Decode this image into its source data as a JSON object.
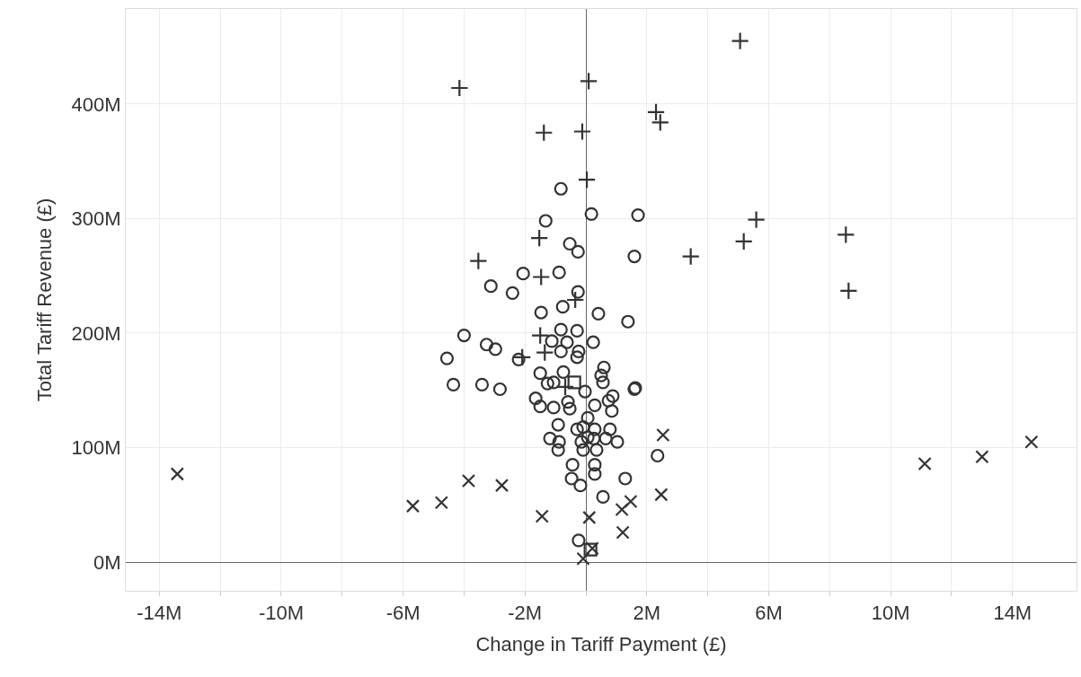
{
  "chart_data": {
    "type": "scatter",
    "xlabel": "Change in Tariff Payment (£)",
    "ylabel": "Total Tariff Revenue (£)",
    "xlim": [
      -15.1,
      16.1
    ],
    "ylim": [
      -25,
      483
    ],
    "xticks": [
      {
        "value": -14,
        "label": "-14M"
      },
      {
        "value": -12,
        "label": null
      },
      {
        "value": -10,
        "label": "-10M"
      },
      {
        "value": -8,
        "label": null
      },
      {
        "value": -6,
        "label": "-6M"
      },
      {
        "value": -4,
        "label": null
      },
      {
        "value": -2,
        "label": "-2M"
      },
      {
        "value": 0,
        "label": null
      },
      {
        "value": 2,
        "label": "2M"
      },
      {
        "value": 4,
        "label": null
      },
      {
        "value": 6,
        "label": "6M"
      },
      {
        "value": 8,
        "label": null
      },
      {
        "value": 10,
        "label": "10M"
      },
      {
        "value": 12,
        "label": null
      },
      {
        "value": 14,
        "label": "14M"
      }
    ],
    "yticks": [
      {
        "value": 0,
        "label": "0M"
      },
      {
        "value": 100,
        "label": "100M"
      },
      {
        "value": 200,
        "label": "200M"
      },
      {
        "value": 300,
        "label": "300M"
      },
      {
        "value": 400,
        "label": "400M"
      }
    ],
    "grid": true,
    "series": [
      {
        "marker": "circle",
        "color": "#333333",
        "x": [
          -0.82,
          0.18,
          1.71,
          -1.32,
          -0.53,
          -0.26,
          1.59,
          -2.06,
          -0.88,
          -3.12,
          -2.41,
          -0.26,
          -0.76,
          -1.47,
          0.41,
          1.38,
          -4.0,
          -3.26,
          -2.97,
          -0.82,
          -0.29,
          -1.12,
          0.24,
          -0.62,
          -0.82,
          -0.24,
          -0.29,
          -2.21,
          -4.56,
          -1.5,
          -0.74,
          -1.06,
          -1.26,
          0.59,
          0.5,
          0.56,
          1.62,
          1.59,
          -4.35,
          -3.41,
          -2.82,
          -0.03,
          -1.65,
          -1.5,
          -1.06,
          -0.53,
          -0.59,
          0.29,
          0.88,
          0.74,
          0.85,
          -0.91,
          0.06,
          -0.09,
          -0.29,
          0.29,
          0.79,
          0.06,
          -0.15,
          0.26,
          0.65,
          1.03,
          -1.18,
          -0.88,
          -0.91,
          0.35,
          -0.09,
          -0.44,
          0.29,
          0.29,
          -0.47,
          -0.18,
          1.29,
          0.56,
          2.35,
          -0.24
        ],
        "values": [
          326,
          304,
          303,
          298,
          278,
          271,
          267,
          252,
          253,
          241,
          235,
          236,
          223,
          218,
          217,
          210,
          198,
          190,
          186,
          203,
          202,
          193,
          192,
          192,
          184,
          184,
          179,
          177,
          178,
          165,
          166,
          157,
          156,
          170,
          163,
          157,
          152,
          151,
          155,
          155,
          151,
          149,
          143,
          136,
          135,
          134,
          140,
          137,
          145,
          141,
          132,
          120,
          126,
          118,
          116,
          116,
          116,
          109,
          105,
          108,
          108,
          105,
          108,
          105,
          98,
          98,
          98,
          85,
          85,
          77,
          73,
          67,
          73,
          57,
          93,
          19
        ]
      },
      {
        "marker": "plus",
        "color": "#333333",
        "x": [
          5.06,
          -4.15,
          0.09,
          2.3,
          2.44,
          -1.38,
          -0.12,
          0.03,
          -1.53,
          -3.53,
          -1.47,
          3.44,
          5.18,
          5.59,
          8.53,
          8.62,
          -0.35,
          -1.5,
          -1.35,
          -2.09,
          -0.68
        ],
        "values": [
          455,
          414,
          420,
          393,
          384,
          375,
          376,
          334,
          283,
          263,
          249,
          267,
          280,
          299,
          286,
          237,
          229,
          198,
          183,
          179,
          153
        ]
      },
      {
        "marker": "cross",
        "color": "#333333",
        "x": [
          -13.41,
          -5.68,
          -4.74,
          -3.85,
          -2.76,
          -1.44,
          0.11,
          1.18,
          1.47,
          1.21,
          2.47,
          2.53,
          -0.09,
          0.21,
          11.12,
          13.0,
          14.62
        ],
        "values": [
          77,
          49,
          52,
          71,
          67,
          40,
          39,
          46,
          53,
          26,
          59,
          111,
          3,
          12,
          86,
          92,
          105
        ]
      },
      {
        "marker": "square",
        "color": "#333333",
        "x": [
          -0.38,
          0.15
        ],
        "values": [
          157,
          11
        ]
      }
    ]
  }
}
